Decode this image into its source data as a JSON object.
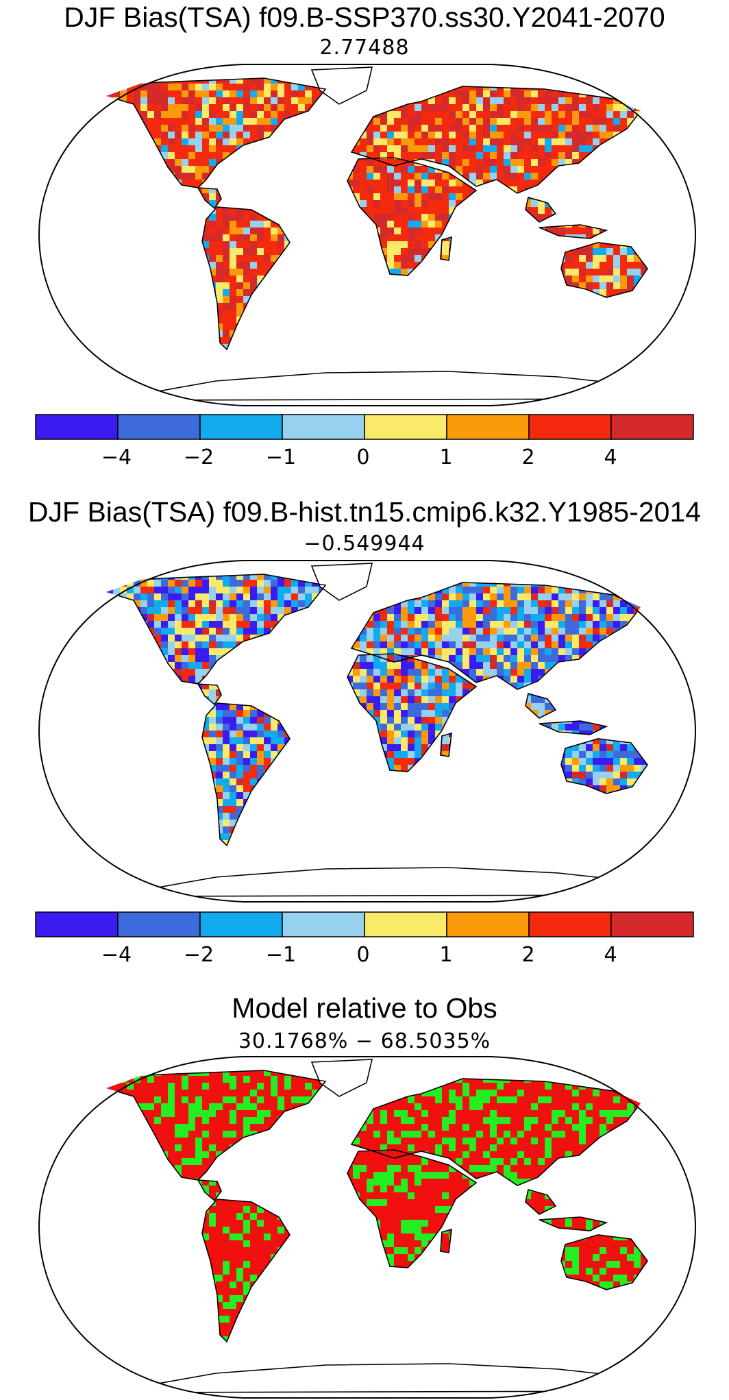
{
  "panels": [
    {
      "title": "DJF Bias(TSA) f09.B-SSP370.ss30.Y2041-2070",
      "subtitle": "2.77488",
      "palette_id": "bias"
    },
    {
      "title": "DJF Bias(TSA) f09.B-hist.tn15.cmip6.k32.Y1985-2014",
      "subtitle": "−0.549944",
      "palette_id": "bias"
    },
    {
      "title": "Model relative to Obs",
      "subtitle": "30.1768% − 68.5035%",
      "palette_id": "relative"
    }
  ],
  "colorbars": [
    {
      "colors": [
        "#3b1cf0",
        "#3d6bdc",
        "#14aaf0",
        "#96d2ee",
        "#faea6a",
        "#fb9b0c",
        "#f42a0f",
        "#d42a2c"
      ],
      "tick_labels": [
        "−4",
        "−2",
        "−1",
        "0",
        "1",
        "2",
        "4"
      ]
    },
    {
      "colors": [
        "#3b1cf0",
        "#3d6bdc",
        "#14aaf0",
        "#96d2ee",
        "#faea6a",
        "#fb9b0c",
        "#f42a0f",
        "#d42a2c"
      ],
      "tick_labels": [
        "−4",
        "−2",
        "−1",
        "0",
        "1",
        "2",
        "4"
      ]
    }
  ],
  "relative_colors": {
    "model_closer": "#f20f0f",
    "obs_closer": "#22ee22"
  }
}
